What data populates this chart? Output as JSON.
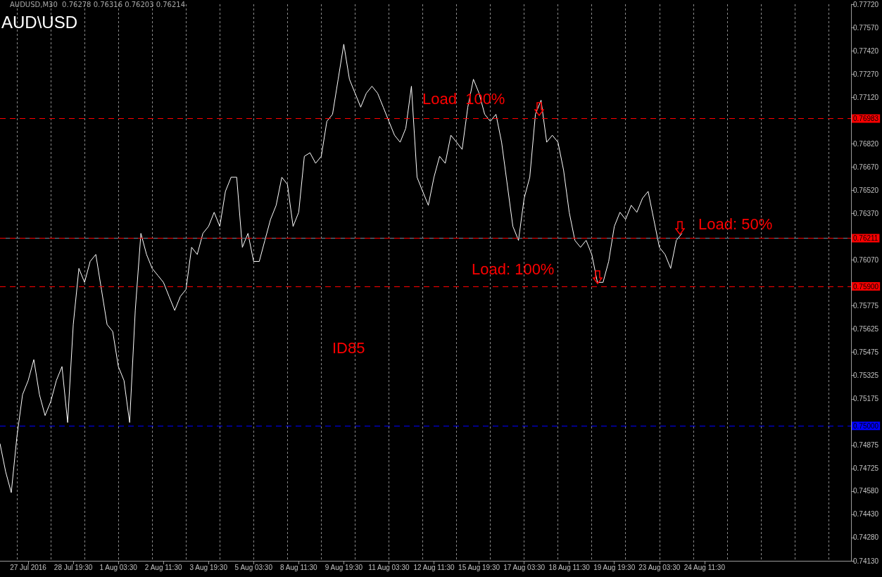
{
  "chart_data": {
    "type": "line",
    "title": "AUD\\USD",
    "subtitle": "AUDUSD,M30  0.76278 0.76316 0.76203 0.76214",
    "categories": [
      null,
      null,
      null,
      null,
      null,
      "27 Jul 2016",
      null,
      null,
      null,
      null,
      null,
      null,
      null,
      "28 Jul 19:30",
      null,
      null,
      null,
      null,
      null,
      null,
      null,
      "1 Aug 03:30",
      null,
      null,
      null,
      null,
      null,
      null,
      null,
      "2 Aug 11:30",
      null,
      null,
      null,
      null,
      null,
      null,
      null,
      "3 Aug 19:30",
      null,
      null,
      null,
      null,
      null,
      null,
      null,
      "5 Aug 03:30",
      null,
      null,
      null,
      null,
      null,
      null,
      null,
      "8 Aug 11:30",
      null,
      null,
      null,
      null,
      null,
      null,
      null,
      "9 Aug 19:30",
      null,
      null,
      null,
      null,
      null,
      null,
      null,
      "11 Aug 03:30",
      null,
      null,
      null,
      null,
      null,
      null,
      null,
      "12 Aug 11:30",
      null,
      null,
      null,
      null,
      null,
      null,
      null,
      "15 Aug 19:30",
      null,
      null,
      null,
      null,
      null,
      null,
      null,
      "17 Aug 03:30",
      null,
      null,
      null,
      null,
      null,
      null,
      null,
      "18 Aug 11:30",
      null,
      null,
      null,
      null,
      null,
      null,
      null,
      "19 Aug 19:30",
      null,
      null,
      null,
      null,
      null,
      null,
      null,
      "23 Aug 03:30",
      null,
      null,
      null,
      null,
      null,
      null,
      null,
      "24 Aug 11:30",
      null,
      null,
      null,
      null,
      null,
      null,
      null,
      null,
      null,
      null,
      null,
      null,
      null,
      null,
      null,
      null,
      null,
      null,
      null,
      null,
      null,
      null,
      null,
      null,
      null,
      null
    ],
    "series": [
      {
        "color": "#ffffff",
        "values": [
          0.74886,
          0.74705,
          0.7457,
          0.74931,
          0.75202,
          0.75293,
          0.75428,
          0.75202,
          0.75067,
          0.75157,
          0.75293,
          0.75383,
          0.75022,
          0.75654,
          0.76016,
          0.75926,
          0.76061,
          0.76106,
          0.7588,
          0.75654,
          0.75609,
          0.75383,
          0.75293,
          0.75022,
          0.75745,
          0.76242,
          0.76106,
          0.76016,
          0.75971,
          0.75926,
          0.75835,
          0.75745,
          0.75835,
          0.7588,
          0.76152,
          0.76106,
          0.76242,
          0.76287,
          0.76378,
          0.76287,
          0.76513,
          0.76604,
          0.76604,
          0.76152,
          0.76242,
          0.76061,
          0.76061,
          0.76197,
          0.76332,
          0.76423,
          0.76604,
          0.76558,
          0.76287,
          0.76378,
          0.76739,
          0.76762,
          0.76694,
          0.76739,
          0.76965,
          0.7701,
          0.77236,
          0.77462,
          0.77236,
          0.77146,
          0.77056,
          0.77146,
          0.77191,
          0.77146,
          0.77056,
          0.76965,
          0.76875,
          0.7683,
          0.7692,
          0.77191,
          0.76604,
          0.76513,
          0.76423,
          0.76604,
          0.76739,
          0.76694,
          0.76875,
          0.7683,
          0.76784,
          0.77056,
          0.77236,
          0.77146,
          0.7701,
          0.76965,
          0.7701,
          0.7683,
          0.76558,
          0.76287,
          0.76197,
          0.76468,
          0.76604,
          0.7701,
          0.77101,
          0.7683,
          0.76875,
          0.7683,
          0.76649,
          0.76378,
          0.76197,
          0.76152,
          0.76197,
          0.76106,
          0.75926,
          0.75926,
          0.76061,
          0.76287,
          0.76378,
          0.76332,
          0.76423,
          0.76378,
          0.76468,
          0.76513,
          0.76332,
          0.76152,
          0.76106,
          0.76016,
          0.76197,
          0.76242,
          null,
          null,
          null,
          null,
          null,
          null,
          null,
          null,
          null,
          null,
          null,
          null,
          null,
          null,
          null,
          null,
          null,
          null,
          null,
          null,
          null,
          null,
          null,
          null,
          null,
          null,
          null,
          null,
          null,
          null
        ]
      }
    ],
    "ylim": [
      0.7413,
      0.7772
    ],
    "yticks": [
      {
        "value": 0.7772,
        "label": "0.77720"
      },
      {
        "value": 0.7757,
        "label": "0.77570"
      },
      {
        "value": 0.7742,
        "label": "0.77420"
      },
      {
        "value": 0.7727,
        "label": "0.77270"
      },
      {
        "value": 0.7712,
        "label": "0.77120"
      },
      {
        "value": 0.7682,
        "label": "0.76820"
      },
      {
        "value": 0.7667,
        "label": "0.76670"
      },
      {
        "value": 0.7652,
        "label": "0.76520"
      },
      {
        "value": 0.7637,
        "label": "0.76370"
      },
      {
        "value": 0.7607,
        "label": "0.76070"
      },
      0.75775,
      0.75625,
      0.75475,
      0.75325,
      0.75175,
      0.74875,
      0.74725,
      {
        "value": 0.7458,
        "label": "0.74580"
      },
      {
        "value": 0.7443,
        "label": "0.74430"
      },
      {
        "value": 0.7428,
        "label": "0.74280"
      },
      {
        "value": 0.7413,
        "label": "0.74130"
      }
    ],
    "ref_lines": [
      {
        "axis": "y",
        "value": 0.76983,
        "label": "0.76983",
        "color": "#ff0000",
        "line_style": "dashed"
      },
      {
        "axis": "y",
        "value": 0.76211,
        "color": "#778899",
        "line_style": "solid"
      },
      {
        "axis": "y",
        "value": 0.76211,
        "label": "0.76211",
        "color": "#ff0000",
        "line_style": "dashed"
      },
      {
        "axis": "y",
        "value": 0.759,
        "label": "0.75900",
        "color": "#ff0000",
        "line_style": "dashed"
      },
      {
        "axis": "y",
        "value": 0.75,
        "label": "0.75000",
        "color": "#0000ff",
        "line_style": "dashed"
      }
    ],
    "annotations": [
      "Load  100%",
      "Load: 50%",
      "Load: 100%",
      "ID85"
    ],
    "grid": "x",
    "marker": "none",
    "line_style": "solid"
  }
}
